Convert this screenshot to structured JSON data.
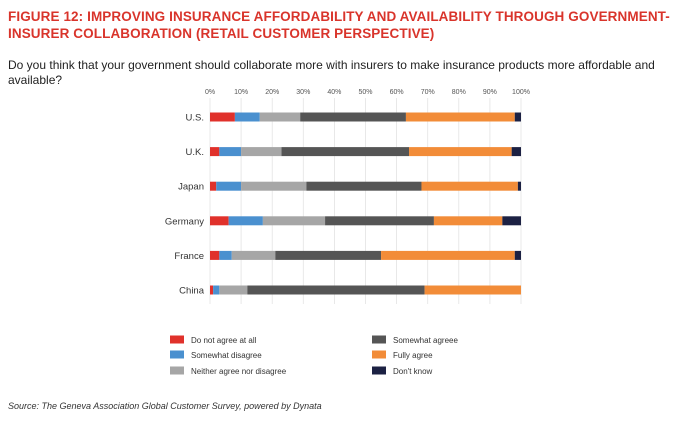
{
  "title": "FIGURE 12: IMPROVING INSURANCE AFFORDABILITY AND AVAILABILITY THROUGH GOVERNMENT-INSURER COLLABORATION (RETAIL CUSTOMER PERSPECTIVE)",
  "question": "Do you think that your government should collaborate more with insurers to make insurance products more affordable and available?",
  "source": "Source: The Geneva Association Global Customer Survey, powered by Dynata",
  "chart_data": {
    "type": "bar",
    "orientation": "horizontal",
    "stacked": true,
    "title": "",
    "xlabel": "",
    "ylabel": "",
    "xlim": [
      0,
      100
    ],
    "x_ticks": [
      "0%",
      "10%",
      "20%",
      "30%",
      "40%",
      "50%",
      "60%",
      "70%",
      "80%",
      "90%",
      "100%"
    ],
    "grid": true,
    "legend_position": "bottom",
    "categories": [
      "U.S.",
      "U.K.",
      "Japan",
      "Germany",
      "France",
      "China"
    ],
    "series": [
      {
        "name": "Do not agree at all",
        "color": "#e0312b",
        "values": [
          8,
          3,
          2,
          6,
          3,
          1
        ]
      },
      {
        "name": "Somewhat disagree",
        "color": "#4a90cf",
        "values": [
          8,
          7,
          8,
          11,
          4,
          2
        ]
      },
      {
        "name": "Neither agree nor disagree",
        "color": "#a6a6a6",
        "values": [
          13,
          13,
          21,
          20,
          14,
          9
        ]
      },
      {
        "name": "Somewhat agreee",
        "color": "#555555",
        "values": [
          34,
          41,
          37,
          35,
          34,
          57
        ]
      },
      {
        "name": "Fully agree",
        "color": "#f28c38",
        "values": [
          35,
          33,
          31,
          22,
          43,
          31
        ]
      },
      {
        "name": "Don't know",
        "color": "#1c2143",
        "values": [
          2,
          3,
          1,
          6,
          2,
          0
        ]
      }
    ]
  }
}
